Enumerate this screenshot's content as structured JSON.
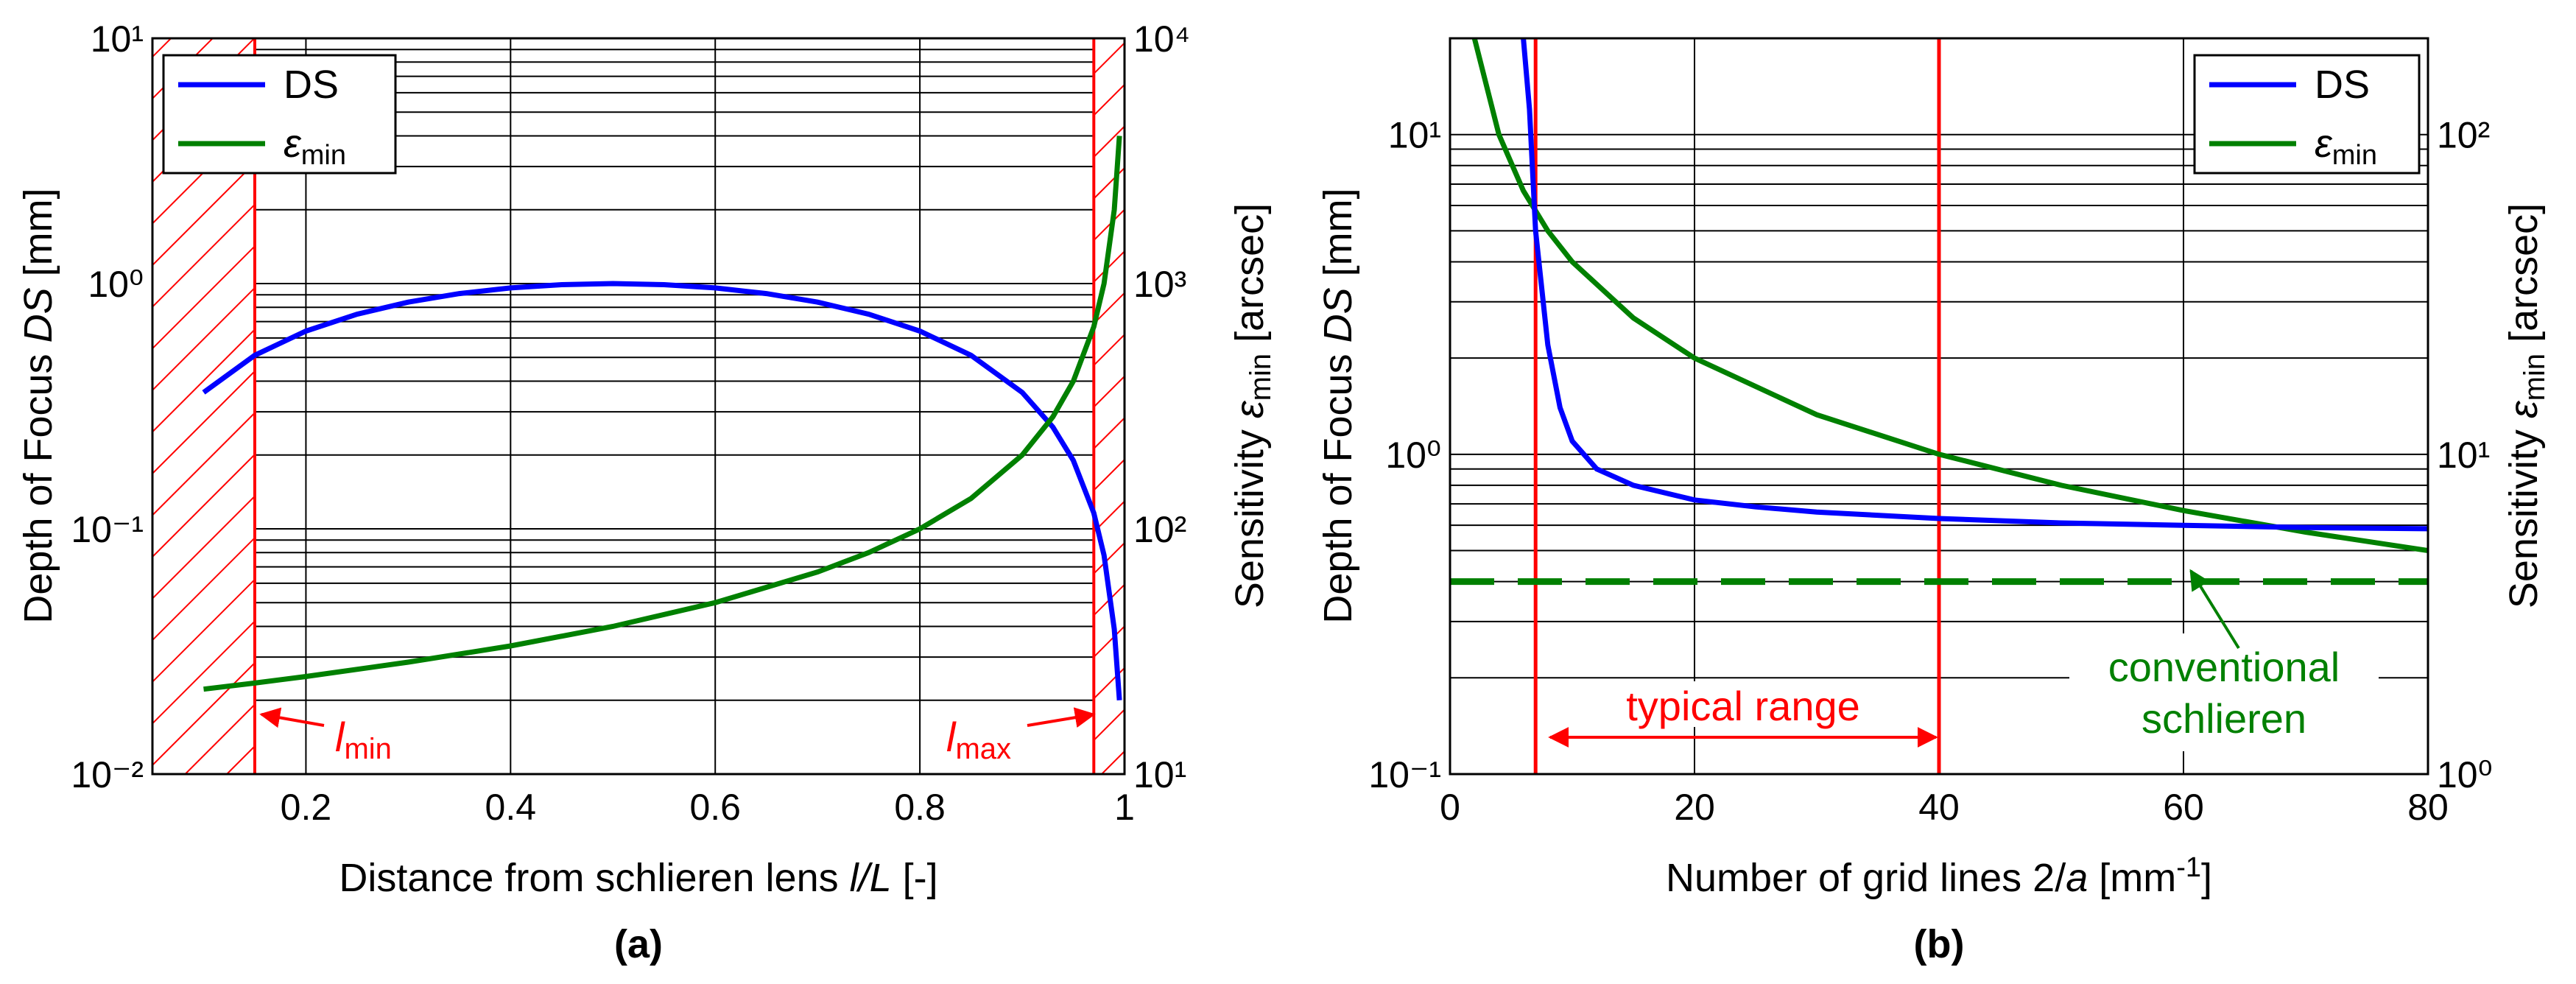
{
  "colors": {
    "ds": "#0000ff",
    "emin": "#008000",
    "marker": "#ff0000",
    "grid": "#000000"
  },
  "chart_data": [
    {
      "type": "line",
      "panel": "(a)",
      "xlabel_pre": "Distance from schlieren lens ",
      "xlabel_var": "l/L",
      "xlabel_post": " [-]",
      "ylabel_left_pre": "Depth of Focus ",
      "ylabel_left_var": "DS",
      "ylabel_left_post": " [mm]",
      "ylabel_right_pre": "Sensitivity ",
      "ylabel_right_var": "ε",
      "ylabel_right_sub": "min",
      "ylabel_right_post": " [arcsec]",
      "xlim": [
        0.05,
        1.0
      ],
      "ylim_left": [
        0.01,
        10
      ],
      "ylim_right": [
        10,
        10000
      ],
      "yscale": "log",
      "x_ticks": [
        "0.2",
        "0.4",
        "0.6",
        "0.8",
        "1"
      ],
      "y_left_ticks": [
        "10⁻²",
        "10⁻¹",
        "10⁰",
        "10¹"
      ],
      "y_right_ticks": [
        "10¹",
        "10²",
        "10³",
        "10⁴"
      ],
      "legend": [
        "DS",
        "ε_min"
      ],
      "series": [
        {
          "name": "DS",
          "axis": "left",
          "x": [
            0.1,
            0.15,
            0.2,
            0.25,
            0.3,
            0.35,
            0.4,
            0.45,
            0.5,
            0.55,
            0.6,
            0.65,
            0.7,
            0.75,
            0.8,
            0.85,
            0.9,
            0.93,
            0.95,
            0.97,
            0.98,
            0.99,
            0.995
          ],
          "values": [
            0.36,
            0.51,
            0.64,
            0.75,
            0.84,
            0.91,
            0.96,
            0.99,
            1.0,
            0.99,
            0.96,
            0.91,
            0.84,
            0.75,
            0.64,
            0.51,
            0.36,
            0.26,
            0.19,
            0.116,
            0.078,
            0.039,
            0.02
          ]
        },
        {
          "name": "ε_min",
          "axis": "right",
          "x": [
            0.1,
            0.15,
            0.2,
            0.3,
            0.4,
            0.5,
            0.6,
            0.7,
            0.75,
            0.8,
            0.85,
            0.9,
            0.93,
            0.95,
            0.97,
            0.98,
            0.99,
            0.995
          ],
          "values": [
            22.2,
            23.5,
            25,
            28.6,
            33.3,
            40,
            50,
            66.7,
            80,
            100,
            133,
            200,
            286,
            400,
            667,
            1000,
            2000,
            4000
          ]
        }
      ],
      "shaded_regions": [
        [
          0.05,
          0.15
        ],
        [
          0.97,
          1.0
        ]
      ],
      "vlines": [
        0.15,
        0.97
      ],
      "annotations": [
        {
          "text": "l",
          "sub": "min",
          "x": 0.15,
          "y": 0.012
        },
        {
          "text": "l",
          "sub": "max",
          "x": 0.97,
          "y": 0.012
        }
      ]
    },
    {
      "type": "line",
      "panel": "(b)",
      "xlabel_pre": "Number of grid lines 2/",
      "xlabel_var": "a",
      "xlabel_post": " [mm",
      "xlabel_sup": "-1",
      "xlabel_end": "]",
      "ylabel_left_pre": "Depth of Focus ",
      "ylabel_left_var": "DS",
      "ylabel_left_post": " [mm]",
      "ylabel_right_pre": "Sensitivity ",
      "ylabel_right_var": "ε",
      "ylabel_right_sub": "min",
      "ylabel_right_post": " [arcsec]",
      "xlim": [
        0,
        80
      ],
      "ylim_left": [
        0.1,
        20
      ],
      "ylim_right": [
        1,
        200
      ],
      "yscale": "log",
      "x_ticks": [
        "0",
        "20",
        "40",
        "60",
        "80"
      ],
      "y_left_ticks": [
        "10⁻¹",
        "10⁰",
        "10¹"
      ],
      "y_right_ticks": [
        "10⁰",
        "10¹",
        "10²"
      ],
      "legend": [
        "DS",
        "ε_min"
      ],
      "series": [
        {
          "name": "DS",
          "axis": "left",
          "x": [
            6,
            6.5,
            7,
            8,
            9,
            10,
            12,
            15,
            20,
            25,
            30,
            40,
            50,
            60,
            70,
            80
          ],
          "values": [
            20,
            12,
            5,
            2.2,
            1.4,
            1.1,
            0.9,
            0.8,
            0.72,
            0.685,
            0.66,
            0.63,
            0.61,
            0.6,
            0.59,
            0.585
          ]
        },
        {
          "name": "ε_min",
          "axis": "right",
          "x": [
            2,
            4,
            6,
            8,
            10,
            15,
            20,
            30,
            40,
            50,
            60,
            70,
            80
          ],
          "values": [
            200,
            100,
            66.7,
            50,
            40,
            26.7,
            20,
            13.3,
            10,
            8,
            6.67,
            5.71,
            5
          ]
        },
        {
          "name": "conventional schlieren",
          "axis": "right",
          "style": "dashed",
          "x": [
            0,
            80
          ],
          "values": [
            4.0,
            4.0
          ]
        }
      ],
      "vlines": [
        7,
        40
      ],
      "annotations": [
        {
          "text": "typical range",
          "from": 7,
          "to": 40
        },
        {
          "text_line1": "conventional",
          "text_line2": "schlieren",
          "arrow_to_x": 60
        }
      ]
    }
  ]
}
